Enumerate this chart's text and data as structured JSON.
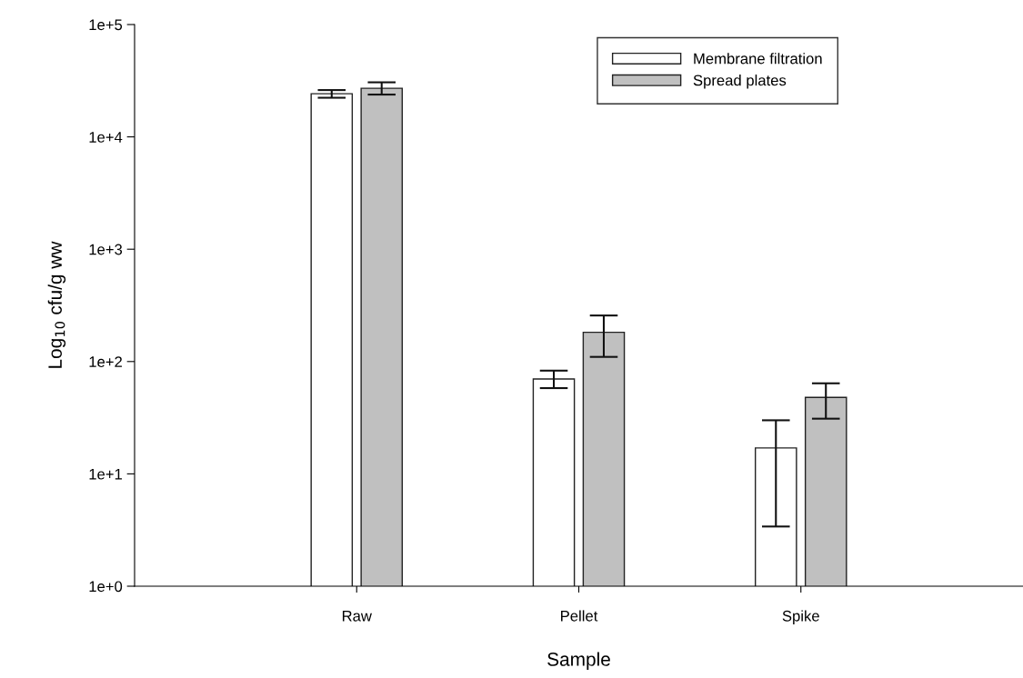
{
  "chart_data": {
    "type": "bar",
    "xlabel": "Sample",
    "ylabel": "Log$_{10}$ cfu/g ww",
    "categories": [
      "Raw",
      "Pellet",
      "Spike"
    ],
    "series": [
      {
        "name": "Membrane filtration",
        "color": "#ffffff",
        "values": [
          24200,
          70,
          17
        ],
        "errors": [
          [
            22300,
            26100
          ],
          [
            58,
            83
          ],
          [
            3.4,
            30
          ]
        ]
      },
      {
        "name": "Spread plates",
        "color": "#c0c0c0",
        "values": [
          27100,
          182,
          48
        ],
        "errors": [
          [
            23800,
            30600
          ],
          [
            110,
            257
          ],
          [
            31,
            64
          ]
        ]
      }
    ],
    "log": "y",
    "ylim": [
      1,
      100000
    ],
    "yticks": [
      {
        "value": 1,
        "label": "1e+0"
      },
      {
        "value": 10,
        "label": "1e+1"
      },
      {
        "value": 100,
        "label": "1e+2"
      },
      {
        "value": 1000,
        "label": "1e+3"
      },
      {
        "value": 10000,
        "label": "1e+4"
      },
      {
        "value": 100000,
        "label": "1e+5"
      }
    ],
    "legend": "top right",
    "grid": false
  }
}
